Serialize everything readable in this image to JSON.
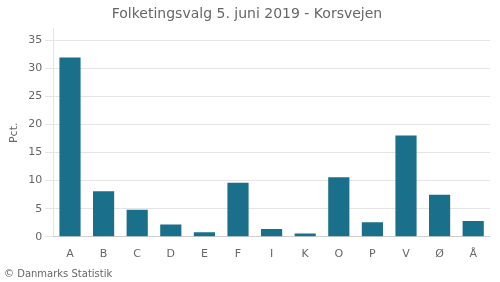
{
  "chart_data": {
    "type": "bar",
    "title": "Folketingsvalg 5. juni 2019 - Korsvejen",
    "categories": [
      "A",
      "B",
      "C",
      "D",
      "E",
      "F",
      "I",
      "K",
      "O",
      "P",
      "V",
      "Ø",
      "Å"
    ],
    "values": [
      31.9,
      8.1,
      4.8,
      2.2,
      0.8,
      9.6,
      1.4,
      0.6,
      10.6,
      2.6,
      18.0,
      7.5,
      2.8
    ],
    "color": "#1a6f8a",
    "ylabel": "Pct.",
    "ylim": [
      0,
      37
    ],
    "yticks": [
      0,
      5,
      10,
      15,
      20,
      25,
      30,
      35
    ],
    "grid": true,
    "footer": "© Danmarks Statistik"
  }
}
